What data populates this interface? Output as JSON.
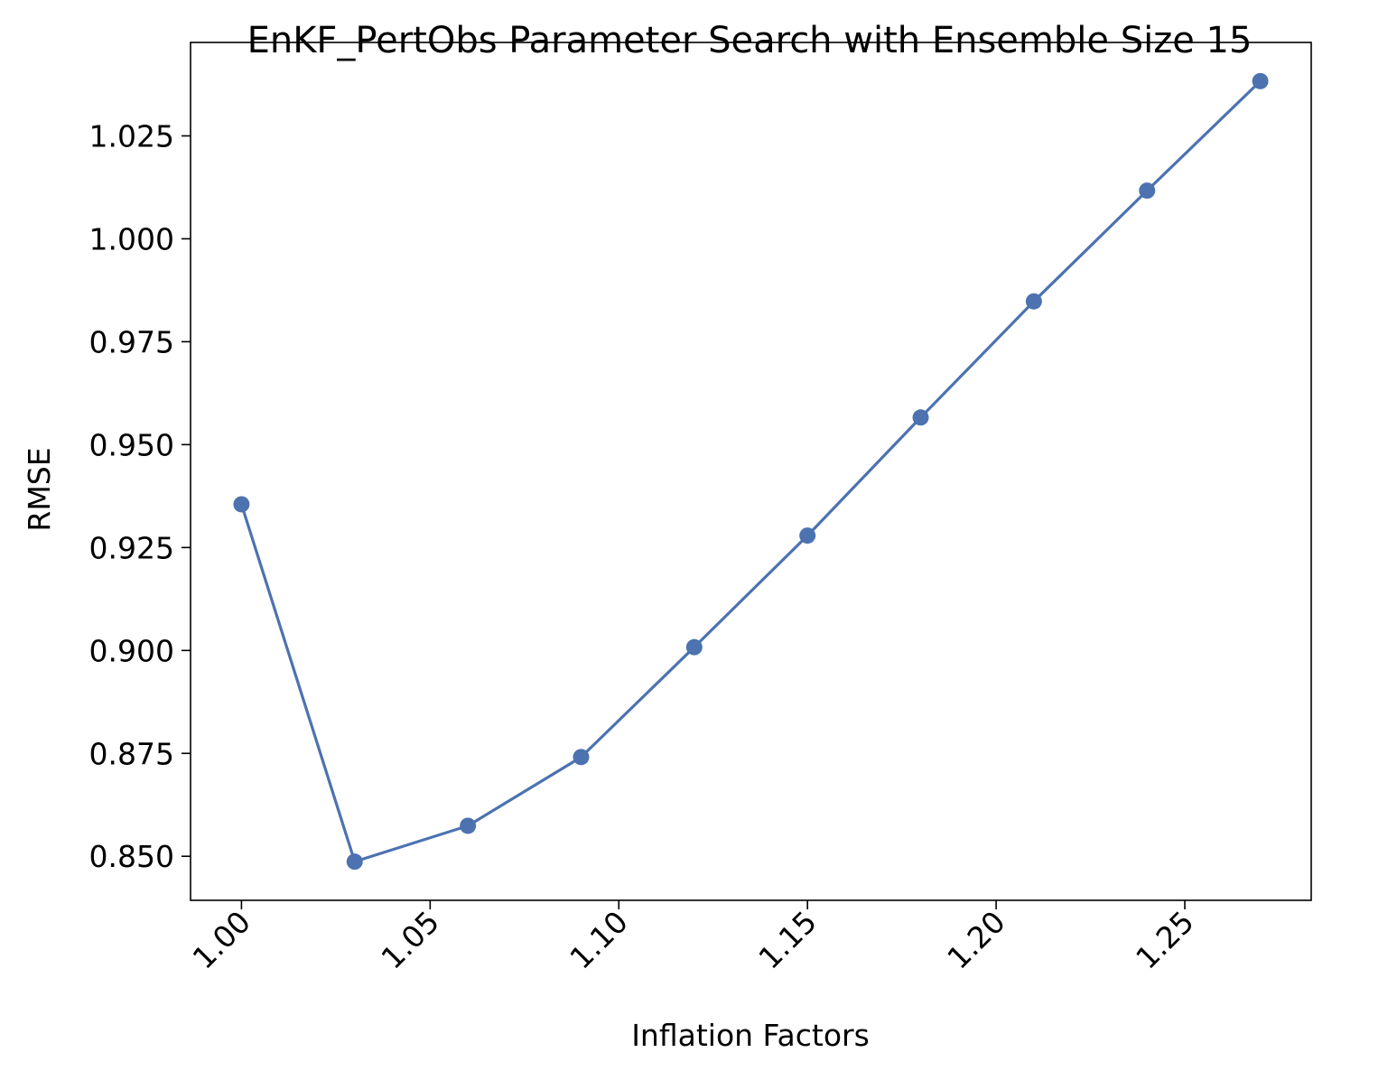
{
  "chart_data": {
    "type": "line",
    "title": "EnKF_PertObs Parameter Search with Ensemble Size 15",
    "xlabel": "Inflation Factors",
    "ylabel": "RMSE",
    "x": [
      1.0,
      1.03,
      1.06,
      1.09,
      1.12,
      1.15,
      1.18,
      1.21,
      1.24,
      1.27
    ],
    "series": [
      {
        "name": "",
        "values": [
          0.9355,
          0.8487,
          0.8574,
          0.8741,
          0.9008,
          0.9279,
          0.9566,
          0.9848,
          1.0117,
          1.0383
        ],
        "color": "#4c72b0",
        "marker": "circle"
      }
    ],
    "xlim": [
      0.9865,
      1.2835
    ],
    "ylim": [
      0.8393,
      1.0477
    ],
    "xticks": [
      1.0,
      1.05,
      1.1,
      1.15,
      1.2,
      1.25
    ],
    "xtick_labels": [
      "1.00",
      "1.05",
      "1.10",
      "1.15",
      "1.20",
      "1.25"
    ],
    "yticks": [
      0.85,
      0.875,
      0.9,
      0.925,
      0.95,
      0.975,
      1.0,
      1.025
    ],
    "ytick_labels": [
      "0.850",
      "0.875",
      "0.900",
      "0.925",
      "0.950",
      "0.975",
      "1.000",
      "1.025"
    ],
    "xtick_rotation": 45,
    "grid": false,
    "legend": "none"
  }
}
